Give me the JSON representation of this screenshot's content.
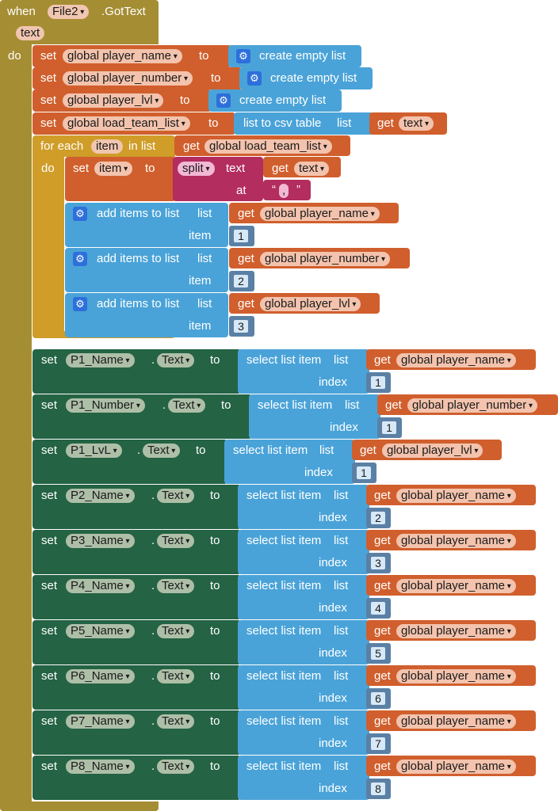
{
  "event": {
    "when_label": "when",
    "component": "File2",
    "event_name": ".GotText",
    "param": "text",
    "do_label": "do"
  },
  "init_sets": [
    {
      "set": "set",
      "var": "global player_name",
      "to": "to",
      "value": "create empty list"
    },
    {
      "set": "set",
      "var": "global player_number",
      "to": "to",
      "value": "create empty list"
    },
    {
      "set": "set",
      "var": "global player_lvl",
      "to": "to",
      "value": "create empty list"
    }
  ],
  "csv_set": {
    "set": "set",
    "var": "global load_team_list",
    "to": "to",
    "fn": "list to csv table",
    "fn_arg": "list",
    "get": "get",
    "get_var": "text"
  },
  "foreach": {
    "label": "for each",
    "item": "item",
    "in_list": "in list",
    "get": "get",
    "get_var": "global load_team_list",
    "do": "do",
    "set_item": {
      "set": "set",
      "var": "item",
      "to": "to",
      "fn": "split",
      "arg1": "text",
      "get": "get",
      "get_var": "text",
      "arg2": "at",
      "quote_open": "“",
      "sep": ",",
      "quote_close": "”"
    },
    "adds": [
      {
        "label": "add items to list",
        "list": "list",
        "get": "get",
        "var": "global player_name",
        "item_label": "item",
        "item": "1"
      },
      {
        "label": "add items to list",
        "list": "list",
        "get": "get",
        "var": "global player_number",
        "item_label": "item",
        "item": "2"
      },
      {
        "label": "add items to list",
        "list": "list",
        "get": "get",
        "var": "global player_lvl",
        "item_label": "item",
        "item": "3"
      }
    ]
  },
  "component_sets": [
    {
      "comp": "P1_Name",
      "prop": "Text",
      "var": "global player_name",
      "index": "1"
    },
    {
      "comp": "P1_Number",
      "prop": "Text",
      "var": "global player_number",
      "index": "1"
    },
    {
      "comp": "P1_LvL",
      "prop": "Text",
      "var": "global player_lvl",
      "index": "1"
    },
    {
      "comp": "P2_Name",
      "prop": "Text",
      "var": "global player_name",
      "index": "2"
    },
    {
      "comp": "P3_Name",
      "prop": "Text",
      "var": "global player_name",
      "index": "3"
    },
    {
      "comp": "P4_Name",
      "prop": "Text",
      "var": "global player_name",
      "index": "4"
    },
    {
      "comp": "P5_Name",
      "prop": "Text",
      "var": "global player_name",
      "index": "5"
    },
    {
      "comp": "P6_Name",
      "prop": "Text",
      "var": "global player_name",
      "index": "6"
    },
    {
      "comp": "P7_Name",
      "prop": "Text",
      "var": "global player_name",
      "index": "7"
    },
    {
      "comp": "P8_Name",
      "prop": "Text",
      "var": "global player_name",
      "index": "8"
    }
  ],
  "common": {
    "set": "set",
    "dot": ".",
    "to": "to",
    "select": "select list item",
    "list": "list",
    "index": "index",
    "get": "get"
  },
  "colors": {
    "event": "#a58d34",
    "variable": "#d05f2d",
    "list": "#4aa3d8",
    "component": "#246344",
    "text": "#b32d5e",
    "loop": "#cf9d28"
  },
  "icons": {
    "mutator": "gear-icon",
    "dropdown": "dropdown-arrow-icon"
  }
}
